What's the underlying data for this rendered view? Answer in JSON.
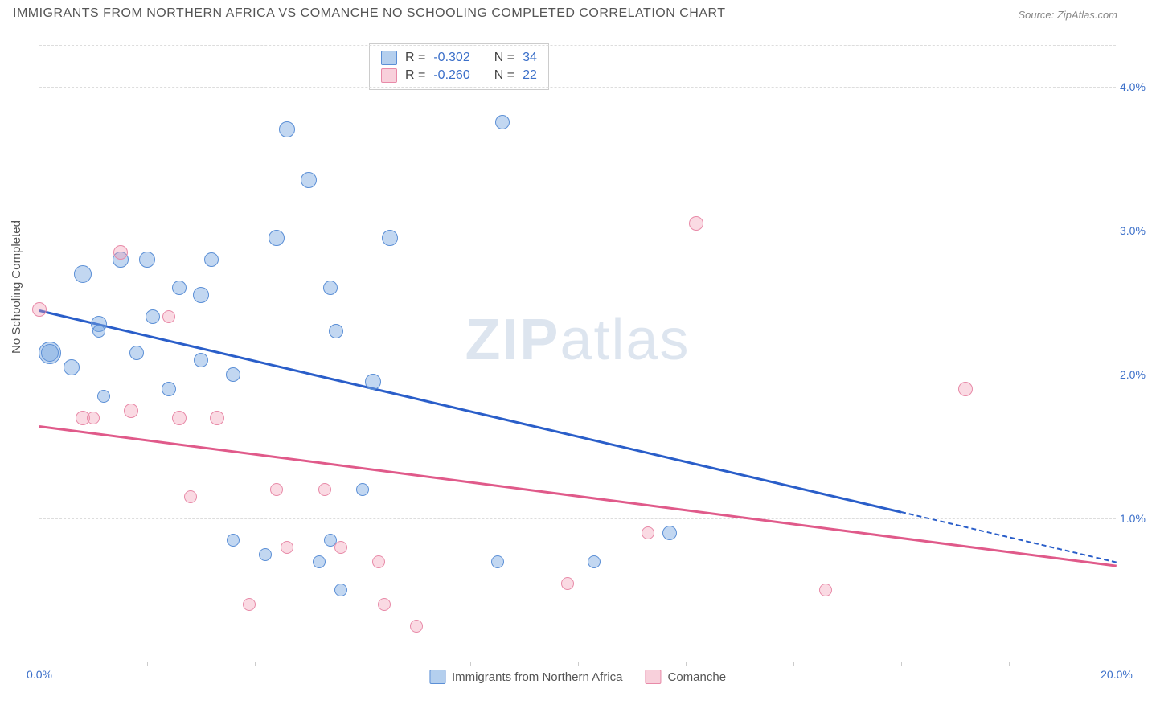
{
  "title": "IMMIGRANTS FROM NORTHERN AFRICA VS COMANCHE NO SCHOOLING COMPLETED CORRELATION CHART",
  "source": "Source: ZipAtlas.com",
  "ylabel": "No Schooling Completed",
  "watermark_a": "ZIP",
  "watermark_b": "atlas",
  "chart": {
    "type": "scatter",
    "xlim": [
      0,
      20
    ],
    "ylim": [
      0,
      4.3
    ],
    "ytick_values": [
      1.0,
      2.0,
      3.0,
      4.0
    ],
    "ytick_labels": [
      "1.0%",
      "2.0%",
      "3.0%",
      "4.0%"
    ],
    "xtick_values": [
      0,
      20
    ],
    "xtick_labels": [
      "0.0%",
      "20.0%"
    ],
    "xminor_ticks": [
      2,
      4,
      6,
      8,
      10,
      12,
      14,
      16,
      18
    ],
    "background_color": "#ffffff",
    "grid_color": "#dddddd",
    "series": [
      {
        "name": "Immigrants from Northern Africa",
        "color_fill": "rgba(119,167,224,0.45)",
        "color_stroke": "#5b8fd6",
        "trend_color": "#2a5ec9",
        "R": "-0.302",
        "N": "34",
        "trend": {
          "x1": 0.0,
          "y1": 2.45,
          "x2": 16.0,
          "y2": 1.05,
          "x2_dash": 20.0,
          "y2_dash": 0.7
        },
        "points": [
          {
            "x": 0.8,
            "y": 2.7,
            "r": 11
          },
          {
            "x": 0.2,
            "y": 2.15,
            "r": 14
          },
          {
            "x": 0.2,
            "y": 2.15,
            "r": 11
          },
          {
            "x": 0.6,
            "y": 2.05,
            "r": 10
          },
          {
            "x": 1.1,
            "y": 2.35,
            "r": 10
          },
          {
            "x": 1.1,
            "y": 2.3,
            "r": 8
          },
          {
            "x": 1.5,
            "y": 2.8,
            "r": 10
          },
          {
            "x": 2.0,
            "y": 2.8,
            "r": 10
          },
          {
            "x": 2.1,
            "y": 2.4,
            "r": 9
          },
          {
            "x": 2.4,
            "y": 1.9,
            "r": 9
          },
          {
            "x": 3.2,
            "y": 2.8,
            "r": 9
          },
          {
            "x": 3.0,
            "y": 2.55,
            "r": 10
          },
          {
            "x": 3.0,
            "y": 2.1,
            "r": 9
          },
          {
            "x": 3.6,
            "y": 2.0,
            "r": 9
          },
          {
            "x": 4.4,
            "y": 2.95,
            "r": 10
          },
          {
            "x": 4.6,
            "y": 3.7,
            "r": 10
          },
          {
            "x": 5.0,
            "y": 3.35,
            "r": 10
          },
          {
            "x": 5.4,
            "y": 2.6,
            "r": 9
          },
          {
            "x": 5.5,
            "y": 2.3,
            "r": 9
          },
          {
            "x": 6.5,
            "y": 2.95,
            "r": 10
          },
          {
            "x": 6.2,
            "y": 1.95,
            "r": 10
          },
          {
            "x": 6.0,
            "y": 1.2,
            "r": 8
          },
          {
            "x": 8.6,
            "y": 3.75,
            "r": 9
          },
          {
            "x": 8.5,
            "y": 0.7,
            "r": 8
          },
          {
            "x": 10.3,
            "y": 0.7,
            "r": 8
          },
          {
            "x": 11.7,
            "y": 0.9,
            "r": 9
          },
          {
            "x": 4.2,
            "y": 0.75,
            "r": 8
          },
          {
            "x": 5.2,
            "y": 0.7,
            "r": 8
          },
          {
            "x": 5.6,
            "y": 0.5,
            "r": 8
          },
          {
            "x": 3.6,
            "y": 0.85,
            "r": 8
          },
          {
            "x": 5.4,
            "y": 0.85,
            "r": 8
          },
          {
            "x": 1.8,
            "y": 2.15,
            "r": 9
          },
          {
            "x": 1.2,
            "y": 1.85,
            "r": 8
          },
          {
            "x": 2.6,
            "y": 2.6,
            "r": 9
          }
        ]
      },
      {
        "name": "Comanche",
        "color_fill": "rgba(240,150,175,0.35)",
        "color_stroke": "#e88aa8",
        "trend_color": "#e05a8a",
        "R": "-0.260",
        "N": "22",
        "trend": {
          "x1": 0.0,
          "y1": 1.65,
          "x2": 20.0,
          "y2": 0.68
        },
        "points": [
          {
            "x": 0.0,
            "y": 2.45,
            "r": 9
          },
          {
            "x": 0.8,
            "y": 1.7,
            "r": 9
          },
          {
            "x": 1.5,
            "y": 2.85,
            "r": 9
          },
          {
            "x": 1.7,
            "y": 1.75,
            "r": 9
          },
          {
            "x": 2.4,
            "y": 2.4,
            "r": 8
          },
          {
            "x": 2.6,
            "y": 1.7,
            "r": 9
          },
          {
            "x": 3.3,
            "y": 1.7,
            "r": 9
          },
          {
            "x": 2.8,
            "y": 1.15,
            "r": 8
          },
          {
            "x": 3.9,
            "y": 0.4,
            "r": 8
          },
          {
            "x": 4.4,
            "y": 1.2,
            "r": 8
          },
          {
            "x": 4.6,
            "y": 0.8,
            "r": 8
          },
          {
            "x": 5.3,
            "y": 1.2,
            "r": 8
          },
          {
            "x": 5.6,
            "y": 0.8,
            "r": 8
          },
          {
            "x": 6.3,
            "y": 0.7,
            "r": 8
          },
          {
            "x": 6.4,
            "y": 0.4,
            "r": 8
          },
          {
            "x": 7.0,
            "y": 0.25,
            "r": 8
          },
          {
            "x": 9.8,
            "y": 0.55,
            "r": 8
          },
          {
            "x": 11.3,
            "y": 0.9,
            "r": 8
          },
          {
            "x": 12.2,
            "y": 3.05,
            "r": 9
          },
          {
            "x": 14.6,
            "y": 0.5,
            "r": 8
          },
          {
            "x": 17.2,
            "y": 1.9,
            "r": 9
          },
          {
            "x": 1.0,
            "y": 1.7,
            "r": 8
          }
        ]
      }
    ]
  },
  "legend_bottom": [
    "Immigrants from Northern Africa",
    "Comanche"
  ]
}
